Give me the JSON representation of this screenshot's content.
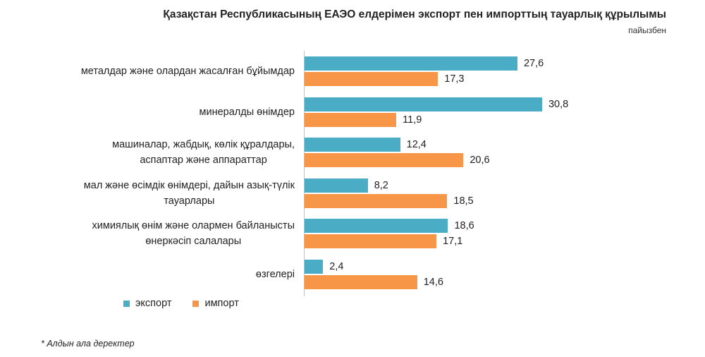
{
  "chart_data": {
    "type": "bar",
    "orientation": "horizontal",
    "title": "Қазақстан Республикасының ЕАЭО елдерімен экспорт пен импорттың тауарлық құрылымы",
    "unit": "пайызбен",
    "categories": [
      "металдар және олардан жасалған бұйымдар",
      "минералды өнімдер",
      "машиналар, жабдық, көлік құралдары, аспаптар және аппараттар",
      "мал және өсімдік өнімдері, дайын азық-түлік тауарлары",
      "химиялық өнім және олармен байланысты өнеркәсіп салалары",
      "өзгелері"
    ],
    "category_lines": [
      [
        "металдар және олардан жасалған бұйымдар"
      ],
      [
        "минералды өнімдер"
      ],
      [
        "машиналар, жабдық, көлік құралдары,",
        "аспаптар және аппараттар"
      ],
      [
        "мал және өсімдік өнімдері, дайын азық-түлік",
        "тауарлары"
      ],
      [
        "химиялық өнім және олармен байланысты",
        "өнеркәсіп салалары"
      ],
      [
        "өзгелері"
      ]
    ],
    "series": [
      {
        "name": "экспорт",
        "color": "#4bacc6",
        "values": [
          27.6,
          30.8,
          12.4,
          8.2,
          18.6,
          2.4
        ],
        "labels": [
          "27,6",
          "30,8",
          "12,4",
          "8,2",
          "18,6",
          "2,4"
        ]
      },
      {
        "name": "импорт",
        "color": "#f79646",
        "values": [
          17.3,
          11.9,
          20.6,
          18.5,
          17.1,
          14.6
        ],
        "labels": [
          "17,3",
          "11,9",
          "20,6",
          "18,5",
          "17,1",
          "14,6"
        ]
      }
    ],
    "xlim": [
      0,
      35
    ],
    "grid": false,
    "legend": "bottom-left",
    "footnote": "* Алдын ала деректер"
  }
}
